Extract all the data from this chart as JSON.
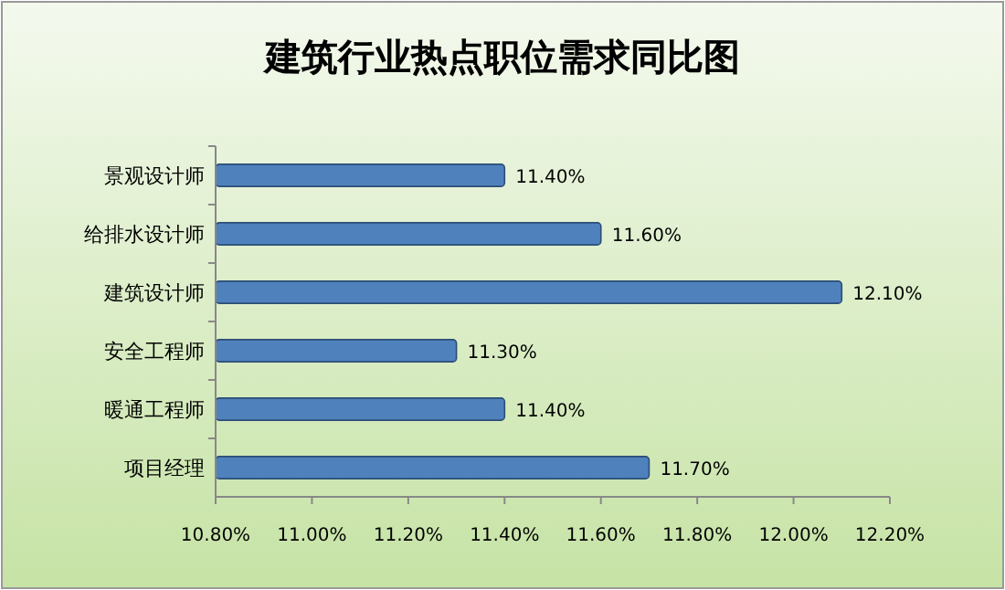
{
  "chart_data": {
    "type": "bar",
    "orientation": "horizontal",
    "title": "建筑行业热点职位需求同比图",
    "categories": [
      "景观设计师",
      "给排水设计师",
      "建筑设计师",
      "安全工程师",
      "暖通工程师",
      "项目经理"
    ],
    "values": [
      11.4,
      11.6,
      12.1,
      11.3,
      11.4,
      11.7
    ],
    "value_labels": [
      "11.40%",
      "11.60%",
      "12.10%",
      "11.30%",
      "11.40%",
      "11.70%"
    ],
    "color": "#4f81bd",
    "xlim": [
      10.8,
      12.2
    ],
    "xticks": [
      {
        "value": 10.8,
        "label": "10.80%"
      },
      {
        "value": 11.0,
        "label": "11.00%"
      },
      {
        "value": 11.2,
        "label": "11.20%"
      },
      {
        "value": 11.4,
        "label": "11.40%"
      },
      {
        "value": 11.6,
        "label": "11.60%"
      },
      {
        "value": 11.8,
        "label": "11.80%"
      },
      {
        "value": 12.0,
        "label": "12.00%"
      },
      {
        "value": 12.2,
        "label": "12.20%"
      }
    ]
  }
}
